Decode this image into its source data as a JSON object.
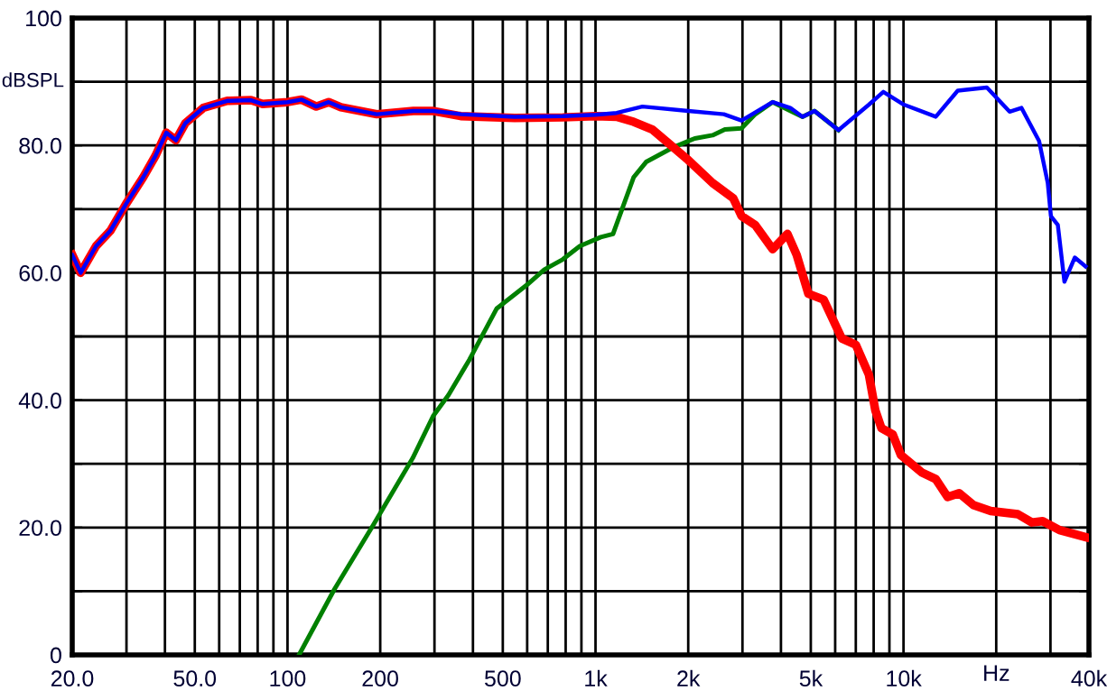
{
  "chart_data": {
    "type": "line",
    "xlabel": "Hz",
    "ylabel": "dBSPL",
    "log": "x",
    "grid": true,
    "marker": "none",
    "line_style": "solid",
    "xlim": [
      20,
      40000
    ],
    "ylim": [
      0,
      100
    ],
    "xticks": [
      {
        "value": 20,
        "label": "20.0"
      },
      {
        "value": 30,
        "label": null
      },
      {
        "value": 40,
        "label": null
      },
      {
        "value": 50,
        "label": "50.0"
      },
      {
        "value": 60,
        "label": null
      },
      {
        "value": 70,
        "label": null
      },
      {
        "value": 80,
        "label": null
      },
      {
        "value": 90,
        "label": null
      },
      100,
      200,
      {
        "value": 300,
        "label": null
      },
      {
        "value": 400,
        "label": null
      },
      500,
      {
        "value": 600,
        "label": null
      },
      {
        "value": 700,
        "label": null
      },
      {
        "value": 800,
        "label": null
      },
      {
        "value": 900,
        "label": null
      },
      {
        "value": 1000,
        "label": "1k"
      },
      {
        "value": 2000,
        "label": "2k"
      },
      {
        "value": 3000,
        "label": null
      },
      {
        "value": 4000,
        "label": null
      },
      {
        "value": 5000,
        "label": "5k"
      },
      {
        "value": 6000,
        "label": null
      },
      {
        "value": 7000,
        "label": null
      },
      {
        "value": 8000,
        "label": null
      },
      {
        "value": 9000,
        "label": null
      },
      {
        "value": 10000,
        "label": "10k"
      },
      {
        "value": 20000,
        "label": null
      },
      {
        "value": 30000,
        "label": null
      },
      {
        "value": 40000,
        "label": "40k"
      }
    ],
    "yticks": [
      0,
      {
        "value": 10,
        "label": null
      },
      {
        "value": 20,
        "label": "20.0"
      },
      {
        "value": 30,
        "label": null
      },
      {
        "value": 40,
        "label": "40.0"
      },
      {
        "value": 50,
        "label": null
      },
      {
        "value": 60,
        "label": "60.0"
      },
      {
        "value": 70,
        "label": null
      },
      {
        "value": 80,
        "label": "80.0"
      },
      {
        "value": 90,
        "label": null
      },
      100
    ],
    "series": [
      {
        "color": "#008000",
        "x": [
          109,
          142,
          191,
          255,
          297,
          333,
          390,
          478,
          599,
          682,
          783,
          890,
          1040,
          1140,
          1330,
          1460,
          1790,
          2100,
          2400,
          2630,
          2980,
          3300,
          3760,
          4700,
          5140,
          6150
        ],
        "values": [
          0,
          10.3,
          20.6,
          30.9,
          37.5,
          40.8,
          46.4,
          54.4,
          58.1,
          60.5,
          62.1,
          64.2,
          65.6,
          66.1,
          75,
          77.4,
          79.7,
          81.1,
          81.6,
          82.5,
          82.7,
          84.9,
          86.8,
          84.5,
          85.4,
          82.4
        ]
      },
      {
        "color": "#ff0000",
        "x": [
          20,
          21.3,
          23.9,
          26.6,
          29.9,
          34,
          37.2,
          40.4,
          43.4,
          46.6,
          53.3,
          63.7,
          76.1,
          83,
          100,
          111,
          124,
          136,
          149,
          195,
          256,
          298,
          365,
          546,
          783,
          1000,
          1171,
          1330,
          1530,
          1790,
          2000,
          2400,
          2800,
          2980,
          3300,
          3760,
          4200,
          4500,
          4910,
          5500,
          6300,
          7000,
          7720,
          8100,
          8480,
          9230,
          9800,
          11500,
          12730,
          13900,
          15150,
          16900,
          19200,
          23500,
          26100,
          28300,
          32100,
          39000
        ],
        "values": [
          62.8,
          60,
          64.2,
          66.6,
          70.8,
          75,
          78.3,
          82,
          80.8,
          83.5,
          85.9,
          87,
          87.1,
          86.5,
          86.8,
          87.2,
          86.1,
          86.8,
          86,
          84.9,
          85.4,
          85.4,
          84.6,
          84.3,
          84.4,
          84.6,
          84.5,
          83.7,
          82.5,
          79.7,
          77.7,
          74.1,
          71.7,
          68.9,
          67.5,
          63.7,
          66.1,
          62.8,
          56.7,
          55.8,
          49.7,
          48.7,
          44,
          38.4,
          35.6,
          34.6,
          31.4,
          28.6,
          27.6,
          24.8,
          25.4,
          23.5,
          22.6,
          22.1,
          20.8,
          21,
          19.6,
          18.5
        ]
      },
      {
        "color": "#0000ff",
        "x": [
          20,
          21.3,
          23.9,
          26.6,
          29.9,
          34,
          37.2,
          40.4,
          43.4,
          46.6,
          53.3,
          63.7,
          76.1,
          83,
          100,
          111,
          124,
          136,
          149,
          195,
          256,
          298,
          365,
          546,
          783,
          1000,
          1171,
          1420,
          2000,
          2610,
          2980,
          3760,
          4290,
          4700,
          5140,
          6150,
          7720,
          8600,
          10030,
          12730,
          15000,
          18650,
          22100,
          24150,
          27550,
          29400,
          30100,
          31700,
          33300,
          36000,
          39000
        ],
        "values": [
          62.8,
          60,
          64.2,
          66.6,
          70.8,
          75,
          78.3,
          82,
          80.8,
          83.5,
          85.9,
          87,
          87.1,
          86.5,
          86.8,
          87.2,
          86.1,
          86.8,
          86,
          84.9,
          85.4,
          85.4,
          84.9,
          84.5,
          84.6,
          84.8,
          85.1,
          86.1,
          85.4,
          84.9,
          83.9,
          86.8,
          85.9,
          84.5,
          85.4,
          82.4,
          86.4,
          88.4,
          86.4,
          84.5,
          88.6,
          89.1,
          85.3,
          85.9,
          80.7,
          74.1,
          68.9,
          67.5,
          58.6,
          62.4,
          61
        ]
      }
    ]
  }
}
